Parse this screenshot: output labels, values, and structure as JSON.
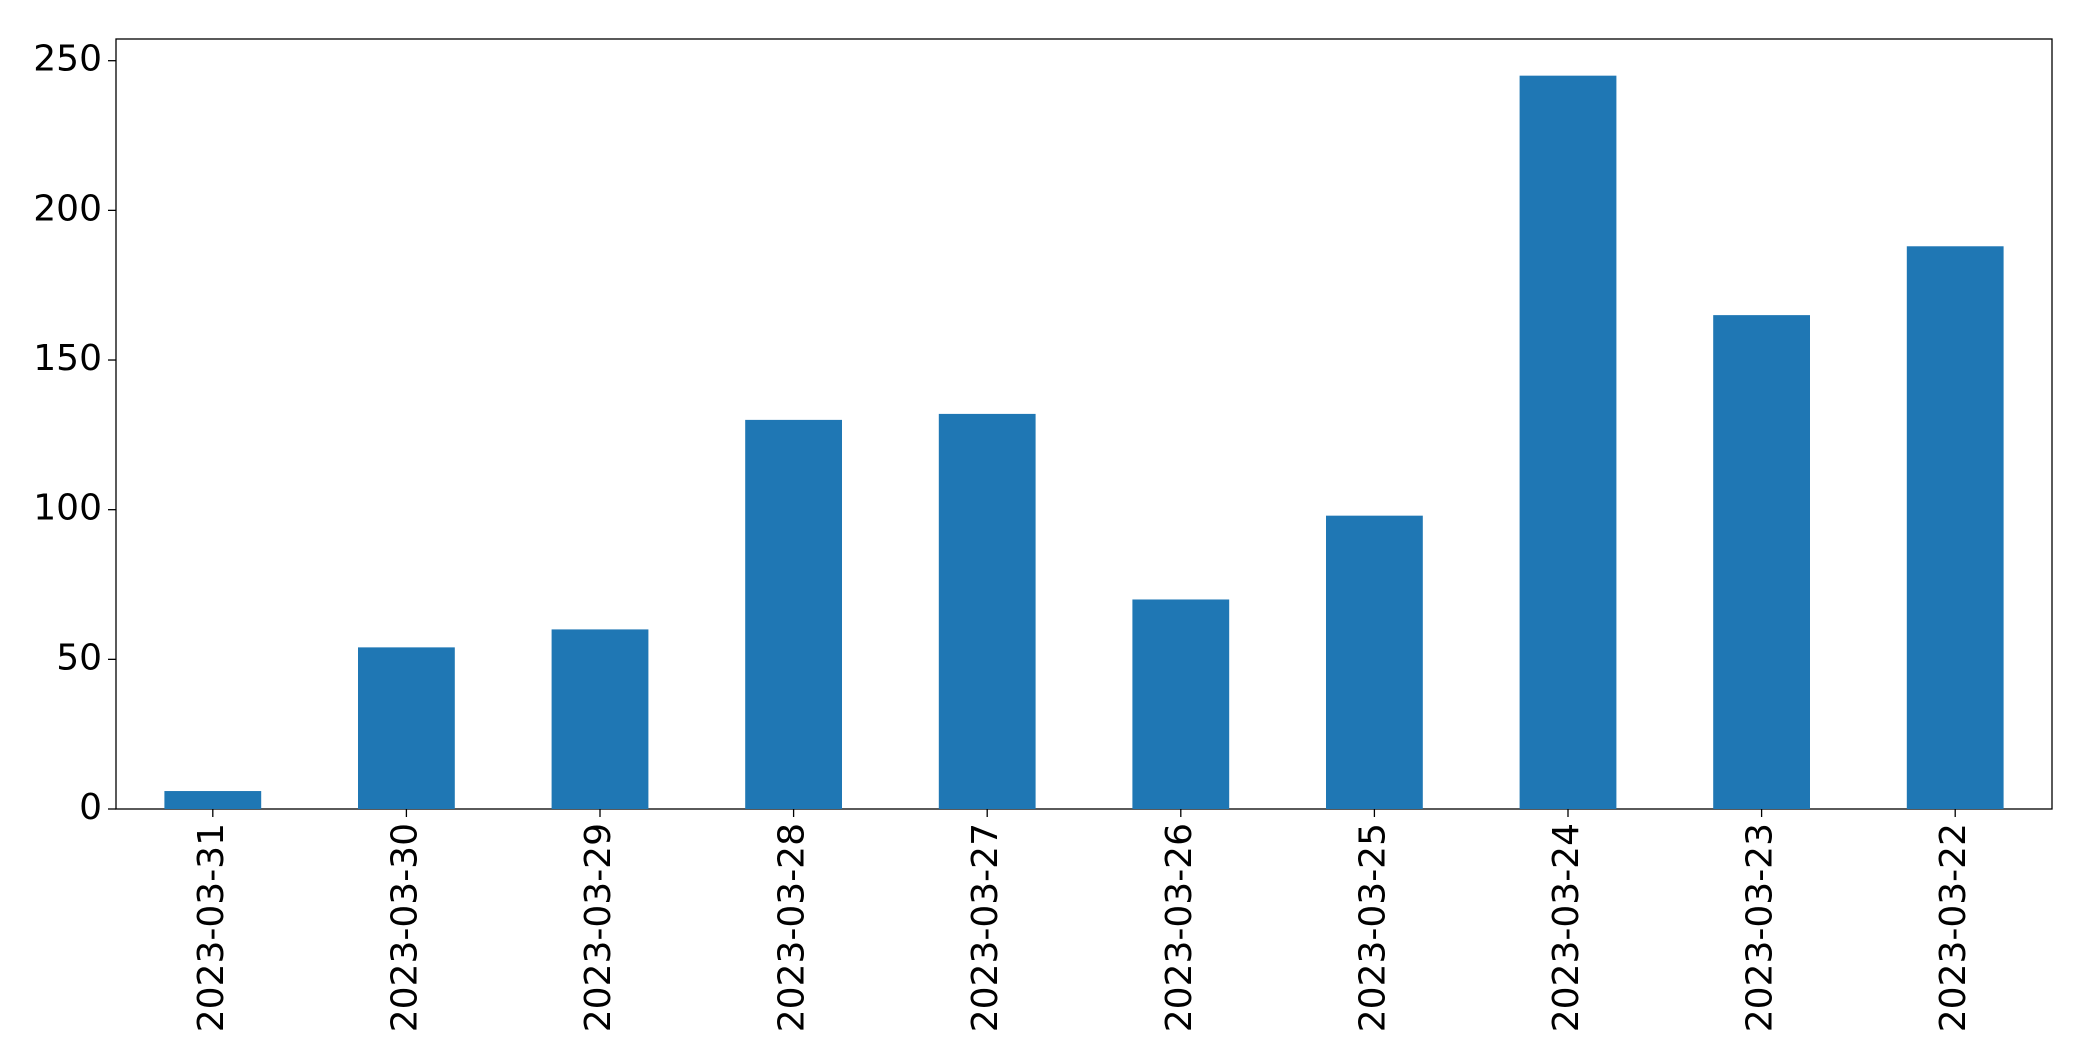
{
  "chart_data": {
    "type": "bar",
    "categories": [
      "2023-03-31",
      "2023-03-30",
      "2023-03-29",
      "2023-03-28",
      "2023-03-27",
      "2023-03-26",
      "2023-03-25",
      "2023-03-24",
      "2023-03-23",
      "2023-03-22"
    ],
    "values": [
      6,
      54,
      60,
      130,
      132,
      70,
      98,
      245,
      165,
      188
    ],
    "color": "#1f77b4",
    "ylim": [
      0,
      257.25
    ],
    "yticks": [
      0,
      50,
      100,
      150,
      200,
      250
    ],
    "grid": false
  }
}
